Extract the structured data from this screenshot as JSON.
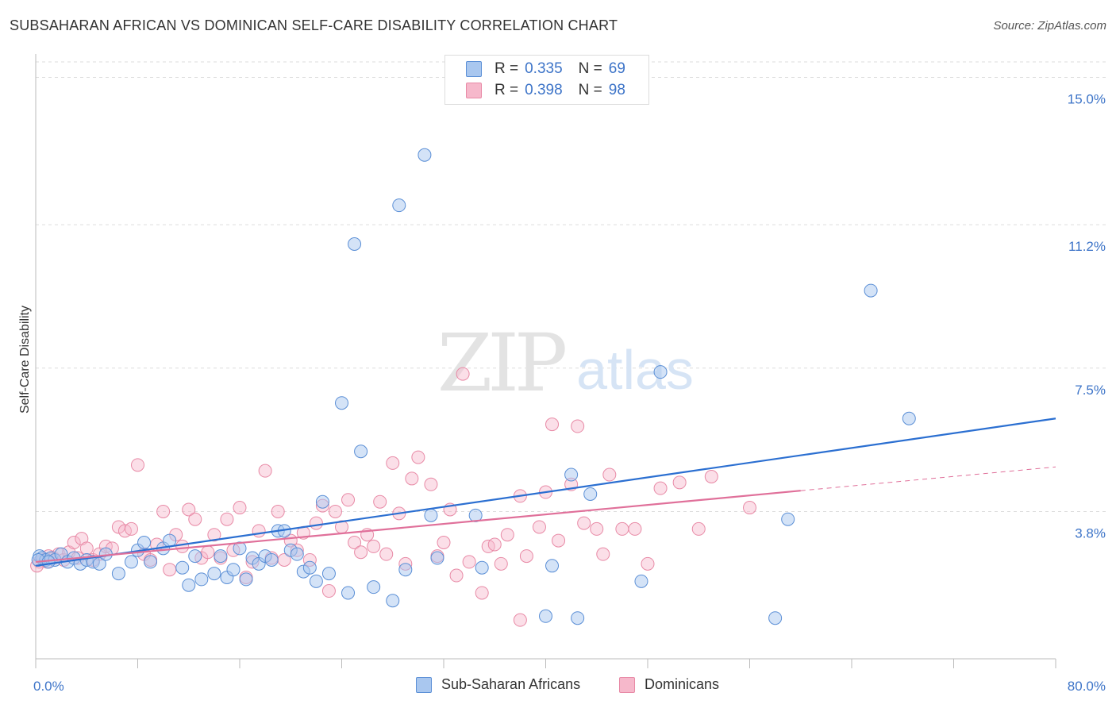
{
  "title": "SUBSAHARAN AFRICAN VS DOMINICAN SELF-CARE DISABILITY CORRELATION CHART",
  "source": "Source: ZipAtlas.com",
  "watermark": {
    "zip": "ZIP",
    "atlas": "atlas"
  },
  "legend": {
    "rows": [
      {
        "r_label": "R =",
        "r_value": "0.335",
        "n_label": "N =",
        "n_value": "69"
      },
      {
        "r_label": "R =",
        "r_value": "0.398",
        "n_label": "N =",
        "n_value": "98"
      }
    ]
  },
  "colors": {
    "blue_fill": "#a9c7ef",
    "blue_stroke": "#5b8fd6",
    "blue_line": "#2b6fd1",
    "pink_fill": "#f6b8cb",
    "pink_stroke": "#e88aa6",
    "pink_line": "#e0709a",
    "tick_text": "#3d74c8",
    "grid": "#dddddd"
  },
  "chart_data": {
    "type": "scatter",
    "title": "SUBSAHARAN AFRICAN VS DOMINICAN SELF-CARE DISABILITY CORRELATION CHART",
    "xlabel": "",
    "ylabel": "Self-Care Disability",
    "xlim": [
      0,
      80
    ],
    "ylim": [
      0,
      15.4
    ],
    "x_tick_labels": [
      "0.0%",
      "80.0%"
    ],
    "y_ticks": [
      3.8,
      7.5,
      11.2,
      15.0
    ],
    "y_tick_labels": [
      "3.8%",
      "7.5%",
      "11.2%",
      "15.0%"
    ],
    "grid": true,
    "legend_position": "bottom",
    "series": [
      {
        "name": "Sub-Saharan Africans",
        "r": 0.335,
        "n": 69,
        "trend": {
          "x": [
            0,
            80
          ],
          "y": [
            2.4,
            6.2
          ],
          "dashed_from": null
        },
        "points": [
          [
            0.3,
            2.65
          ],
          [
            0.5,
            2.6
          ],
          [
            0.8,
            2.55
          ],
          [
            1.2,
            2.6
          ],
          [
            1.5,
            2.55
          ],
          [
            2,
            2.7
          ],
          [
            2.5,
            2.5
          ],
          [
            3,
            2.6
          ],
          [
            3.5,
            2.45
          ],
          [
            4,
            2.55
          ],
          [
            4.5,
            2.5
          ],
          [
            5,
            2.45
          ],
          [
            5.5,
            2.7
          ],
          [
            6.5,
            2.2
          ],
          [
            7.5,
            2.5
          ],
          [
            8,
            2.8
          ],
          [
            8.5,
            3.0
          ],
          [
            9,
            2.5
          ],
          [
            10,
            2.85
          ],
          [
            10.5,
            3.05
          ],
          [
            11.5,
            2.35
          ],
          [
            12,
            1.9
          ],
          [
            12.5,
            2.65
          ],
          [
            13,
            2.05
          ],
          [
            14,
            2.2
          ],
          [
            14.5,
            2.65
          ],
          [
            15,
            2.1
          ],
          [
            15.5,
            2.3
          ],
          [
            16,
            2.85
          ],
          [
            16.5,
            2.05
          ],
          [
            17,
            2.6
          ],
          [
            17.5,
            2.45
          ],
          [
            18,
            2.65
          ],
          [
            18.5,
            2.55
          ],
          [
            19,
            3.3
          ],
          [
            19.5,
            3.3
          ],
          [
            20,
            2.8
          ],
          [
            20.5,
            2.7
          ],
          [
            21,
            2.25
          ],
          [
            21.5,
            2.35
          ],
          [
            22,
            2.0
          ],
          [
            22.5,
            4.05
          ],
          [
            23,
            2.2
          ],
          [
            24.5,
            1.7
          ],
          [
            24,
            6.6
          ],
          [
            25,
            10.7
          ],
          [
            25.5,
            5.35
          ],
          [
            26.5,
            1.85
          ],
          [
            28,
            1.5
          ],
          [
            28.5,
            11.7
          ],
          [
            29,
            2.3
          ],
          [
            30.5,
            13.0
          ],
          [
            31,
            3.7
          ],
          [
            31.5,
            2.6
          ],
          [
            34.5,
            3.7
          ],
          [
            35,
            2.35
          ],
          [
            40,
            1.1
          ],
          [
            40.5,
            2.4
          ],
          [
            42,
            4.75
          ],
          [
            42.5,
            1.05
          ],
          [
            43.5,
            4.25
          ],
          [
            47.5,
            2.0
          ],
          [
            49,
            7.4
          ],
          [
            58,
            1.05
          ],
          [
            59,
            3.6
          ],
          [
            65.5,
            9.5
          ],
          [
            68.5,
            6.2
          ],
          [
            0.2,
            2.55
          ],
          [
            1,
            2.5
          ]
        ]
      },
      {
        "name": "Dominicans",
        "r": 0.398,
        "n": 98,
        "trend": {
          "x": [
            0,
            80
          ],
          "y": [
            2.5,
            4.95
          ],
          "dashed_from": 60
        },
        "points": [
          [
            0.3,
            2.5
          ],
          [
            0.6,
            2.55
          ],
          [
            1,
            2.65
          ],
          [
            1.4,
            2.6
          ],
          [
            1.8,
            2.7
          ],
          [
            2.2,
            2.55
          ],
          [
            2.6,
            2.75
          ],
          [
            3,
            3.0
          ],
          [
            3.3,
            2.6
          ],
          [
            3.6,
            3.1
          ],
          [
            4,
            2.85
          ],
          [
            4.5,
            2.55
          ],
          [
            5,
            2.7
          ],
          [
            5.5,
            2.9
          ],
          [
            6,
            2.85
          ],
          [
            6.5,
            3.4
          ],
          [
            7,
            3.3
          ],
          [
            7.5,
            3.35
          ],
          [
            8,
            5.0
          ],
          [
            8.5,
            2.7
          ],
          [
            9,
            2.55
          ],
          [
            9.5,
            2.95
          ],
          [
            10,
            3.8
          ],
          [
            10.5,
            2.3
          ],
          [
            11,
            3.2
          ],
          [
            11.5,
            2.9
          ],
          [
            12,
            3.85
          ],
          [
            12.5,
            3.6
          ],
          [
            13,
            2.6
          ],
          [
            13.5,
            2.75
          ],
          [
            14,
            3.2
          ],
          [
            14.5,
            2.6
          ],
          [
            15,
            3.6
          ],
          [
            15.5,
            2.8
          ],
          [
            16,
            3.9
          ],
          [
            16.5,
            2.1
          ],
          [
            17,
            2.5
          ],
          [
            17.5,
            3.3
          ],
          [
            18,
            4.85
          ],
          [
            18.5,
            2.6
          ],
          [
            19,
            3.8
          ],
          [
            19.5,
            2.55
          ],
          [
            20,
            3.05
          ],
          [
            20.5,
            2.8
          ],
          [
            21,
            3.25
          ],
          [
            21.5,
            2.55
          ],
          [
            22,
            3.5
          ],
          [
            22.5,
            3.95
          ],
          [
            23,
            1.75
          ],
          [
            23.5,
            3.8
          ],
          [
            24,
            3.4
          ],
          [
            24.5,
            4.1
          ],
          [
            25,
            3.0
          ],
          [
            25.5,
            2.75
          ],
          [
            26,
            3.2
          ],
          [
            26.5,
            2.9
          ],
          [
            27,
            4.05
          ],
          [
            27.5,
            2.7
          ],
          [
            28,
            5.05
          ],
          [
            28.5,
            3.75
          ],
          [
            29,
            2.45
          ],
          [
            29.5,
            4.65
          ],
          [
            30,
            5.2
          ],
          [
            31,
            4.5
          ],
          [
            31.5,
            2.65
          ],
          [
            32,
            3.0
          ],
          [
            32.5,
            3.85
          ],
          [
            33,
            2.15
          ],
          [
            33.5,
            7.35
          ],
          [
            34,
            2.5
          ],
          [
            35,
            1.7
          ],
          [
            35.5,
            2.9
          ],
          [
            36,
            2.95
          ],
          [
            36.5,
            2.45
          ],
          [
            37,
            3.2
          ],
          [
            38,
            4.2
          ],
          [
            38.5,
            2.65
          ],
          [
            39.5,
            3.4
          ],
          [
            40,
            4.3
          ],
          [
            40.5,
            6.05
          ],
          [
            41,
            3.05
          ],
          [
            42,
            4.5
          ],
          [
            42.5,
            6.0
          ],
          [
            43,
            3.5
          ],
          [
            44,
            3.35
          ],
          [
            44.5,
            2.7
          ],
          [
            45,
            4.75
          ],
          [
            46,
            3.35
          ],
          [
            47,
            3.35
          ],
          [
            48,
            2.45
          ],
          [
            49,
            4.4
          ],
          [
            50.5,
            4.55
          ],
          [
            52,
            3.35
          ],
          [
            53,
            4.7
          ],
          [
            56,
            3.9
          ],
          [
            38,
            1.0
          ],
          [
            0.1,
            2.4
          ],
          [
            0.9,
            2.5
          ]
        ]
      }
    ]
  },
  "bottom_legend": [
    {
      "label": "Sub-Saharan Africans"
    },
    {
      "label": "Dominicans"
    }
  ]
}
